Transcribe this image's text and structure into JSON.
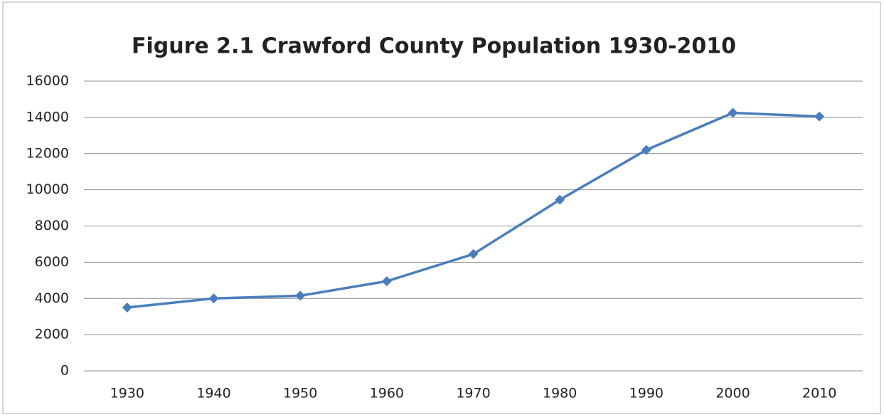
{
  "chart_data": {
    "type": "line",
    "title": "Figure 2.1 Crawford County Population 1930-2010",
    "categories": [
      "1930",
      "1940",
      "1950",
      "1960",
      "1970",
      "1980",
      "1990",
      "2000",
      "2010"
    ],
    "series": [
      {
        "name": "Population",
        "color": "#4a7ebb",
        "values": [
          3500,
          4000,
          4150,
          4950,
          6450,
          9450,
          12200,
          14250,
          14050
        ]
      }
    ],
    "ylim": [
      0,
      16000
    ],
    "yticks": [
      0,
      2000,
      4000,
      6000,
      8000,
      10000,
      12000,
      14000,
      16000
    ],
    "grid": true
  }
}
